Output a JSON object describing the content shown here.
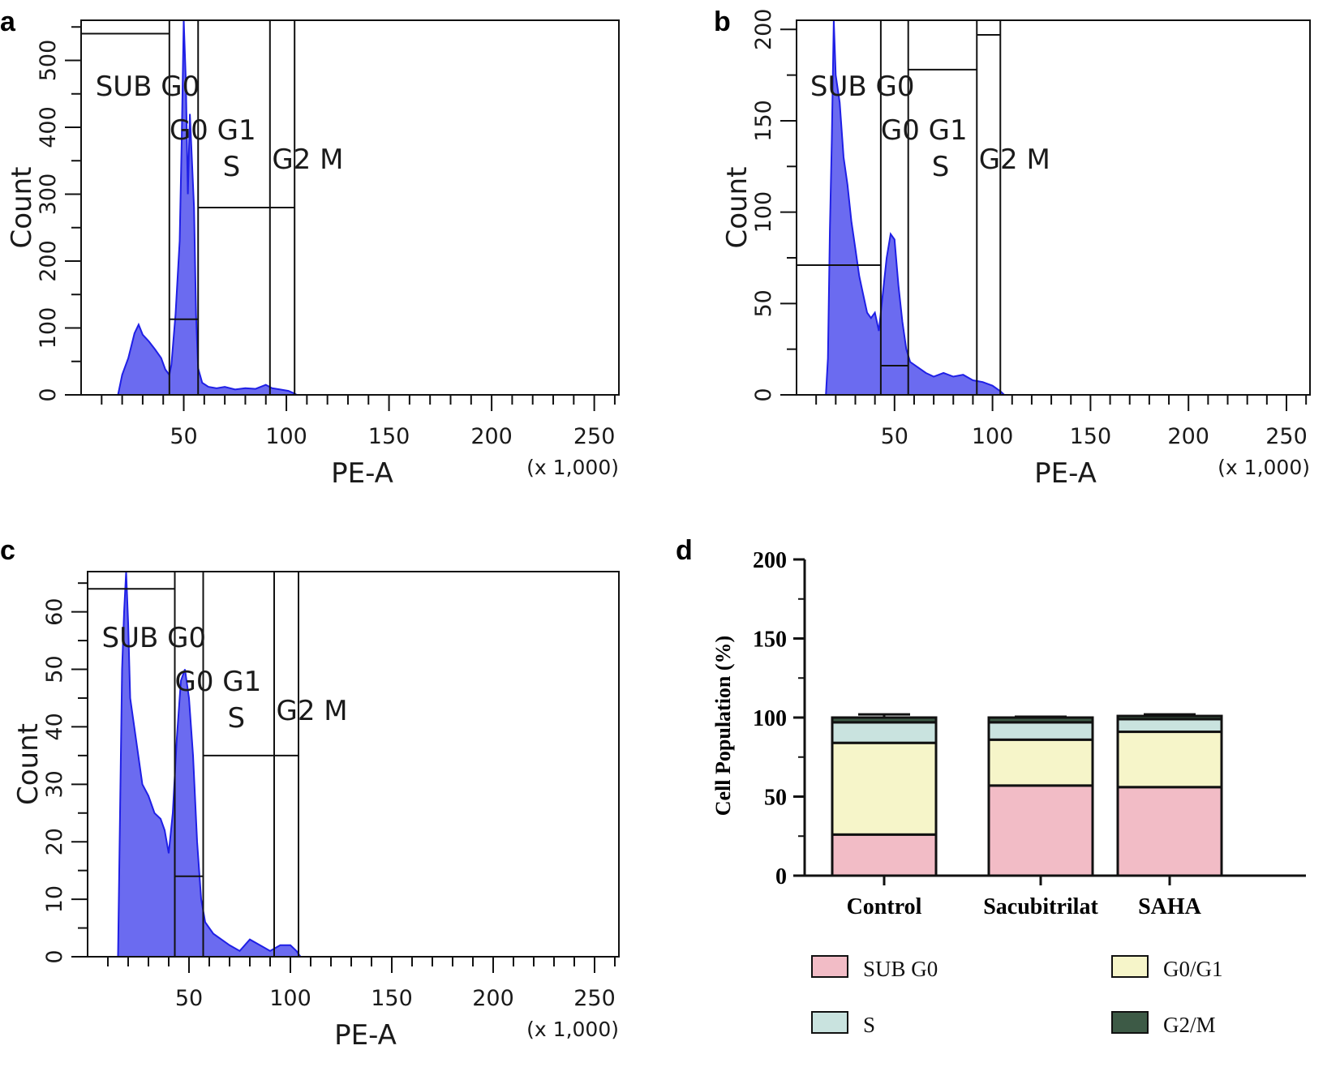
{
  "panels": {
    "a": {
      "label": "a"
    },
    "b": {
      "label": "b"
    },
    "c": {
      "label": "c"
    },
    "d": {
      "label": "d"
    }
  },
  "flow_common": {
    "ylabel": "Count",
    "xlabel": "PE-A",
    "x_unit": "(x 1,000)",
    "x_ticks": [
      "50",
      "100",
      "150",
      "200",
      "250"
    ],
    "gates": {
      "subg0": "SUB G0",
      "g0g1": "G0 G1",
      "s": "S",
      "g2m": "G2 M"
    }
  },
  "chart_data": [
    {
      "type": "histogram",
      "panel": "a",
      "xlabel": "PE-A",
      "ylabel": "Count",
      "x_unit": "(x 1,000)",
      "xlim": [
        0,
        262
      ],
      "ylim": [
        0,
        560
      ],
      "y_ticks": [
        0,
        100,
        200,
        300,
        400,
        500
      ],
      "x_ticks": [
        50,
        100,
        150,
        200,
        250
      ],
      "gates": [
        {
          "name": "SUB G0",
          "x": [
            0,
            43
          ],
          "bar_y": 540
        },
        {
          "name": "G0 G1",
          "x": [
            43,
            57
          ],
          "bar_y": 113
        },
        {
          "name": "S",
          "x": [
            57,
            92
          ],
          "bar_y": 280
        },
        {
          "name": "G2 M",
          "x": [
            92,
            104
          ],
          "bar_y": 280
        }
      ],
      "peaks": [
        [
          18,
          0
        ],
        [
          20,
          30
        ],
        [
          23,
          55
        ],
        [
          26,
          92
        ],
        [
          28,
          105
        ],
        [
          30,
          90
        ],
        [
          33,
          80
        ],
        [
          36,
          68
        ],
        [
          39,
          55
        ],
        [
          41,
          38
        ],
        [
          43,
          30
        ],
        [
          44,
          45
        ],
        [
          46,
          120
        ],
        [
          48,
          230
        ],
        [
          49,
          380
        ],
        [
          50,
          560
        ],
        [
          51,
          470
        ],
        [
          52,
          300
        ],
        [
          53,
          420
        ],
        [
          55,
          280
        ],
        [
          56,
          120
        ],
        [
          57,
          40
        ],
        [
          59,
          18
        ],
        [
          62,
          12
        ],
        [
          66,
          10
        ],
        [
          70,
          12
        ],
        [
          75,
          8
        ],
        [
          80,
          10
        ],
        [
          85,
          9
        ],
        [
          90,
          15
        ],
        [
          93,
          10
        ],
        [
          97,
          8
        ],
        [
          101,
          6
        ],
        [
          104,
          2
        ],
        [
          105,
          0
        ]
      ]
    },
    {
      "type": "histogram",
      "panel": "b",
      "xlabel": "PE-A",
      "ylabel": "Count",
      "x_unit": "(x 1,000)",
      "xlim": [
        0,
        262
      ],
      "ylim": [
        0,
        205
      ],
      "y_ticks": [
        0,
        50,
        100,
        150,
        200
      ],
      "x_ticks": [
        50,
        100,
        150,
        200,
        250
      ],
      "gates": [
        {
          "name": "SUB G0",
          "x": [
            0,
            43
          ],
          "bar_y": 71
        },
        {
          "name": "G0 G1",
          "x": [
            43,
            57
          ],
          "bar_y": 16
        },
        {
          "name": "S",
          "x": [
            57,
            92
          ],
          "bar_y": 178
        },
        {
          "name": "G2 M",
          "x": [
            92,
            104
          ],
          "bar_y": 197
        }
      ],
      "peaks": [
        [
          15,
          0
        ],
        [
          16,
          20
        ],
        [
          17,
          90
        ],
        [
          18,
          140
        ],
        [
          19,
          205
        ],
        [
          20,
          175
        ],
        [
          22,
          160
        ],
        [
          24,
          130
        ],
        [
          26,
          115
        ],
        [
          28,
          95
        ],
        [
          30,
          80
        ],
        [
          32,
          65
        ],
        [
          34,
          55
        ],
        [
          36,
          45
        ],
        [
          38,
          42
        ],
        [
          40,
          45
        ],
        [
          42,
          35
        ],
        [
          44,
          55
        ],
        [
          46,
          75
        ],
        [
          48,
          88
        ],
        [
          50,
          85
        ],
        [
          52,
          60
        ],
        [
          54,
          40
        ],
        [
          56,
          25
        ],
        [
          58,
          18
        ],
        [
          62,
          15
        ],
        [
          66,
          12
        ],
        [
          70,
          10
        ],
        [
          75,
          12
        ],
        [
          80,
          10
        ],
        [
          85,
          11
        ],
        [
          90,
          8
        ],
        [
          95,
          7
        ],
        [
          100,
          5
        ],
        [
          104,
          2
        ],
        [
          106,
          0
        ]
      ]
    },
    {
      "type": "histogram",
      "panel": "c",
      "xlabel": "PE-A",
      "ylabel": "Count",
      "x_unit": "(x 1,000)",
      "xlim": [
        0,
        262
      ],
      "ylim": [
        0,
        67
      ],
      "y_ticks": [
        0,
        10,
        20,
        30,
        40,
        50,
        60
      ],
      "x_ticks": [
        50,
        100,
        150,
        200,
        250
      ],
      "gates": [
        {
          "name": "SUB G0",
          "x": [
            0,
            43
          ],
          "bar_y": 64
        },
        {
          "name": "G0 G1",
          "x": [
            43,
            57
          ],
          "bar_y": 14
        },
        {
          "name": "S",
          "x": [
            57,
            92
          ],
          "bar_y": 35
        },
        {
          "name": "G2 M",
          "x": [
            92,
            104
          ],
          "bar_y": 35
        }
      ],
      "peaks": [
        [
          15,
          0
        ],
        [
          16,
          25
        ],
        [
          17,
          50
        ],
        [
          18,
          60
        ],
        [
          19,
          67
        ],
        [
          20,
          58
        ],
        [
          21,
          45
        ],
        [
          23,
          40
        ],
        [
          25,
          35
        ],
        [
          27,
          30
        ],
        [
          30,
          28
        ],
        [
          33,
          25
        ],
        [
          36,
          24
        ],
        [
          38,
          22
        ],
        [
          40,
          18
        ],
        [
          42,
          25
        ],
        [
          44,
          38
        ],
        [
          46,
          48
        ],
        [
          48,
          50
        ],
        [
          50,
          45
        ],
        [
          52,
          35
        ],
        [
          54,
          20
        ],
        [
          56,
          10
        ],
        [
          58,
          6
        ],
        [
          62,
          4
        ],
        [
          66,
          3
        ],
        [
          70,
          2
        ],
        [
          75,
          1
        ],
        [
          80,
          3
        ],
        [
          85,
          2
        ],
        [
          90,
          1
        ],
        [
          95,
          2
        ],
        [
          100,
          2
        ],
        [
          103,
          1
        ],
        [
          105,
          0
        ]
      ]
    },
    {
      "type": "stacked_bar",
      "panel": "d",
      "ylabel": "Cell Population (%)",
      "categories": [
        "Control",
        "Sacubitrilat",
        "SAHA"
      ],
      "ylim": [
        0,
        200
      ],
      "y_ticks": [
        0,
        50,
        100,
        150,
        200
      ],
      "series": [
        {
          "name": "SUB G0",
          "color": "#f2bcc6",
          "values": [
            26,
            57,
            56
          ],
          "errors": [
            1.5,
            7,
            1.5
          ]
        },
        {
          "name": "G0/G1",
          "color": "#f6f5c9",
          "values": [
            58,
            29,
            35
          ],
          "errors": [
            3,
            3,
            2
          ]
        },
        {
          "name": "S",
          "color": "#c9e3df",
          "values": [
            13,
            11,
            8
          ],
          "errors": [
            3,
            1.5,
            2
          ]
        },
        {
          "name": "G2/M",
          "color": "#3d5a46",
          "values": [
            3,
            3,
            2
          ],
          "errors": [
            2,
            0.5,
            1
          ]
        }
      ]
    }
  ],
  "legend": [
    {
      "name": "SUB G0",
      "color": "#f2bcc6"
    },
    {
      "name": "G0/G1",
      "color": "#f6f5c9"
    },
    {
      "name": "S",
      "color": "#c9e3df"
    },
    {
      "name": "G2/M",
      "color": "#3d5a46"
    }
  ]
}
